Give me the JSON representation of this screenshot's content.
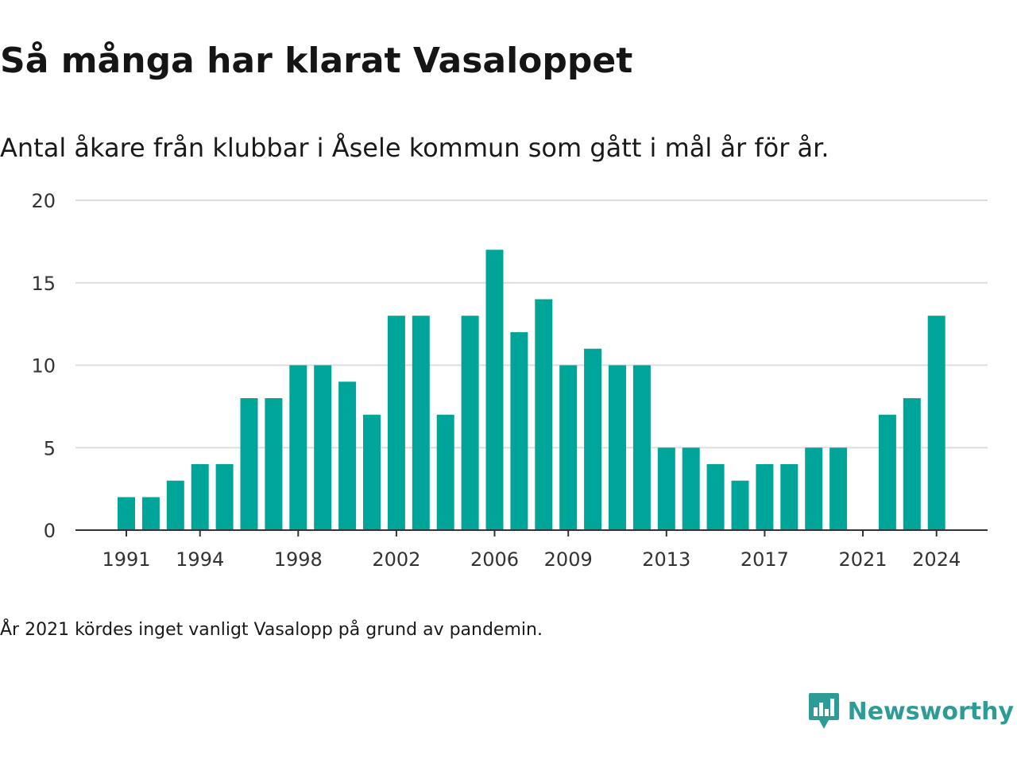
{
  "title": "Så många har klarat Vasaloppet",
  "subtitle": "Antal åkare från klubbar i Åsele kommun som gått i mål år för år.",
  "footnote": "År 2021 kördes inget vanligt Vasalopp på grund av pandemin.",
  "brand": {
    "name": "Newsworthy",
    "icon": "newsworthy-logo-icon",
    "color": "#2d9c96"
  },
  "chart_data": {
    "type": "bar",
    "bar_color": "#00a59a",
    "x": [
      1991,
      1992,
      1993,
      1994,
      1995,
      1996,
      1997,
      1998,
      1999,
      2000,
      2001,
      2002,
      2003,
      2004,
      2005,
      2006,
      2007,
      2008,
      2009,
      2010,
      2011,
      2012,
      2013,
      2014,
      2015,
      2016,
      2017,
      2018,
      2019,
      2020,
      2021,
      2022,
      2023,
      2024
    ],
    "values": [
      2,
      2,
      3,
      4,
      4,
      8,
      8,
      10,
      10,
      9,
      7,
      13,
      13,
      7,
      13,
      17,
      12,
      14,
      10,
      11,
      10,
      10,
      5,
      5,
      4,
      3,
      4,
      4,
      5,
      5,
      0,
      7,
      8,
      13
    ],
    "x_tick_labels": [
      "1991",
      "1994",
      "1998",
      "2002",
      "2006",
      "2009",
      "2013",
      "2017",
      "2021",
      "2024"
    ],
    "y_ticks": [
      "0",
      "5",
      "10",
      "15",
      "20"
    ],
    "ylim": [
      0,
      20
    ],
    "grid": true,
    "legend": "none"
  }
}
